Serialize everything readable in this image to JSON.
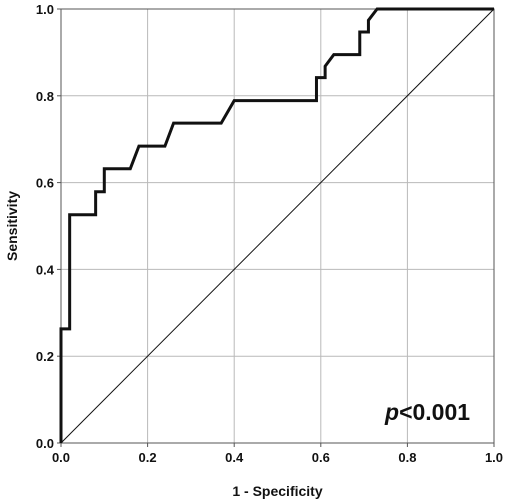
{
  "chart_data": {
    "type": "line",
    "title": "",
    "xlabel": "1 - Specificity",
    "ylabel": "Sensitivity",
    "xlim": [
      0,
      1
    ],
    "ylim": [
      0,
      1
    ],
    "xticks": [
      "0.0",
      "0.2",
      "0.4",
      "0.6",
      "0.8",
      "1.0"
    ],
    "yticks": [
      "0.0",
      "0.2",
      "0.4",
      "0.6",
      "0.8",
      "1.0"
    ],
    "grid": true,
    "legend": "none",
    "annotation": {
      "italic_part": "p",
      "rest": "<0.001"
    },
    "series": [
      {
        "style": "step",
        "color": "#111111",
        "x": [
          0.0,
          0.0,
          0.0,
          0.0,
          0.02,
          0.02,
          0.08,
          0.08,
          0.1,
          0.1,
          0.16,
          0.16,
          0.18,
          0.18,
          0.24,
          0.24,
          0.26,
          0.26,
          0.37,
          0.37,
          0.4,
          0.4,
          0.59,
          0.59,
          0.61,
          0.61,
          0.63,
          0.63,
          0.69,
          0.69,
          0.71,
          0.71,
          0.73,
          0.73,
          1.0
        ],
        "y": [
          0.0,
          0.0,
          0.263,
          0.263,
          0.263,
          0.526,
          0.526,
          0.579,
          0.579,
          0.632,
          0.632,
          0.632,
          0.684,
          0.684,
          0.684,
          0.684,
          0.737,
          0.737,
          0.737,
          0.737,
          0.789,
          0.789,
          0.789,
          0.842,
          0.842,
          0.868,
          0.895,
          0.895,
          0.895,
          0.947,
          0.947,
          0.974,
          1.0,
          1.0,
          1.0
        ]
      },
      {
        "style": "reference",
        "color": "#111111",
        "x": [
          0,
          1
        ],
        "y": [
          0,
          1
        ]
      }
    ]
  }
}
